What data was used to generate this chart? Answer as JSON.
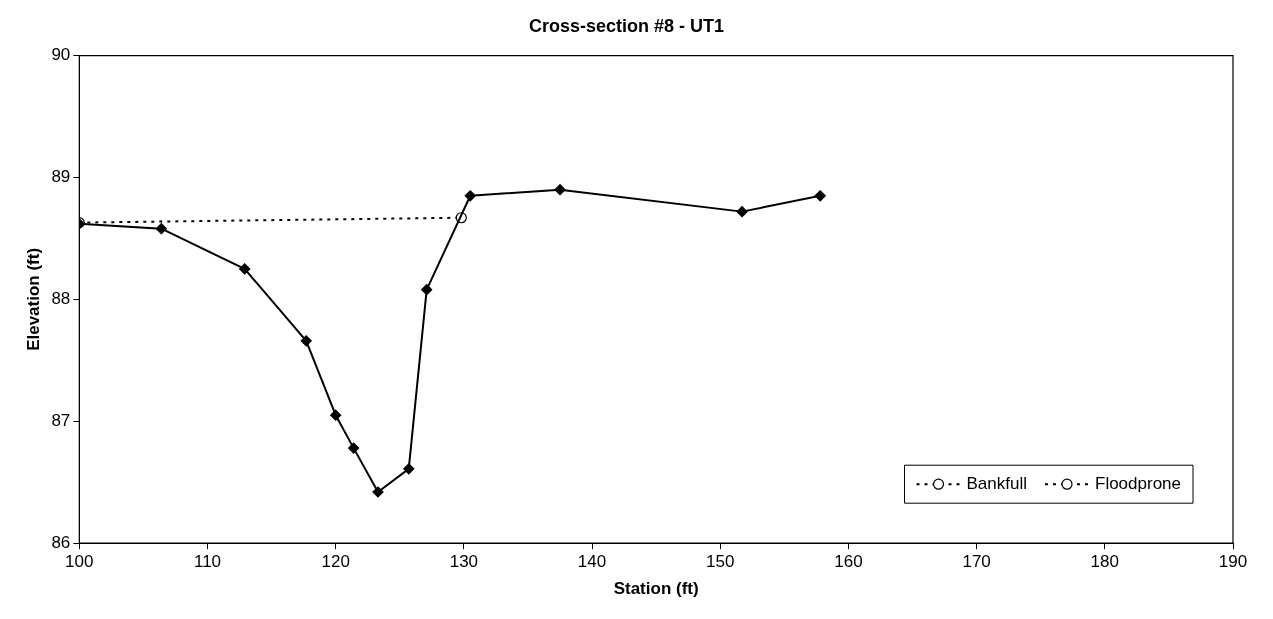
{
  "chart_data": {
    "type": "line",
    "title": "Cross-section #8 - UT1",
    "xlabel": "Station (ft)",
    "ylabel": "Elevation (ft)",
    "xlim": [
      100,
      190
    ],
    "xticks": [
      100,
      110,
      120,
      130,
      140,
      150,
      160,
      170,
      180,
      190
    ],
    "ylim": [
      86,
      90
    ],
    "yticks": [
      86,
      87,
      88,
      89,
      90
    ],
    "grid": false,
    "legend": "bottom right",
    "series": [
      {
        "color": "#000000",
        "marker": "diamond",
        "line_style": "solid",
        "x": [
          100,
          106.4,
          112.9,
          117.7,
          120.0,
          121.4,
          123.3,
          125.7,
          127.1,
          130.5,
          137.5,
          151.7,
          157.8
        ],
        "values": [
          88.62,
          88.58,
          88.25,
          87.66,
          87.05,
          86.78,
          86.42,
          86.61,
          88.08,
          88.85,
          88.9,
          88.72,
          88.85
        ]
      },
      {
        "name": "Bankfull",
        "color": "#000000",
        "marker": "circle",
        "line_style": "dotted",
        "x": [
          100,
          129.8
        ],
        "values": [
          88.63,
          88.67
        ]
      },
      {
        "name": "Floodprone",
        "color": "#000000",
        "marker": "circle",
        "line_style": "dotted"
      }
    ]
  }
}
